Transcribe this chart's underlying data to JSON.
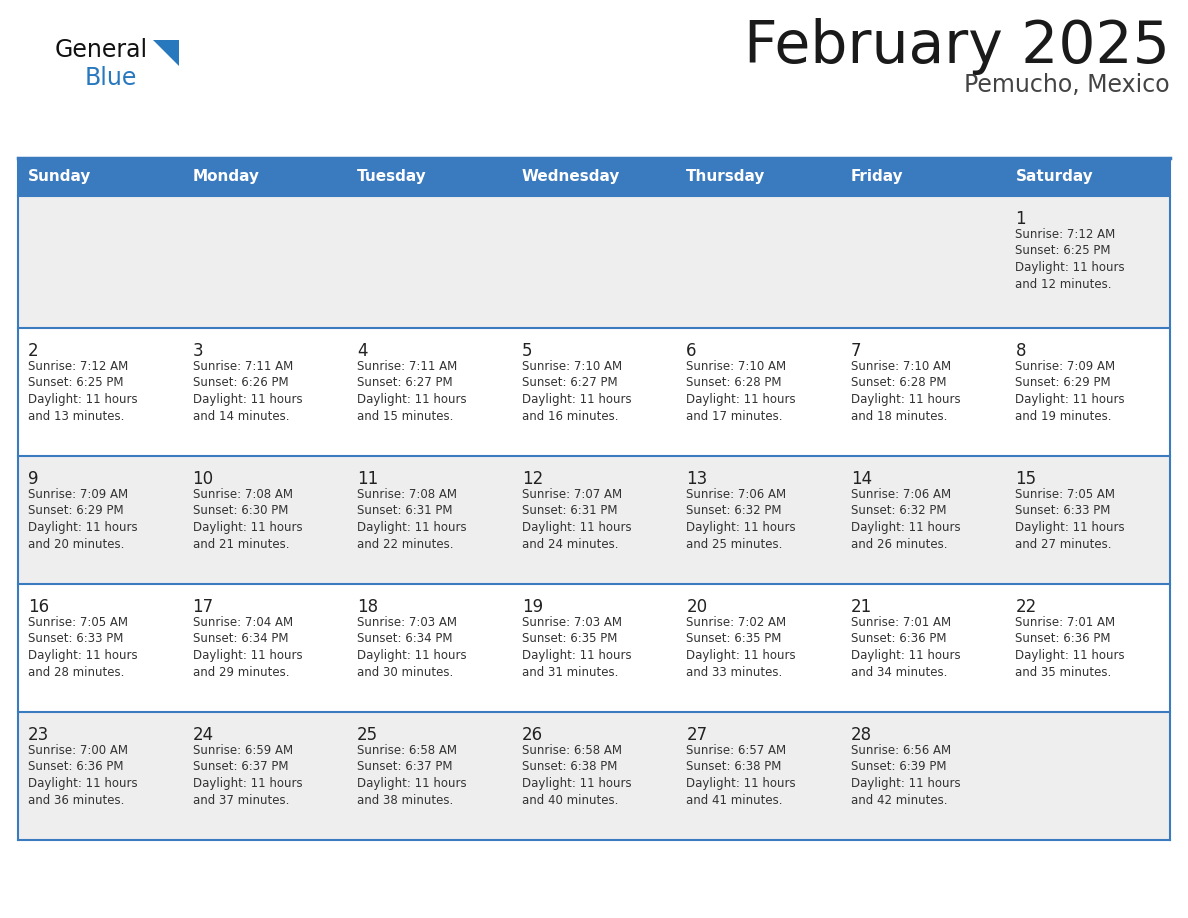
{
  "title": "February 2025",
  "subtitle": "Pemucho, Mexico",
  "days_of_week": [
    "Sunday",
    "Monday",
    "Tuesday",
    "Wednesday",
    "Thursday",
    "Friday",
    "Saturday"
  ],
  "header_bg": "#3a7abf",
  "header_text": "#ffffff",
  "row_bg_even": "#eeeeee",
  "row_bg_odd": "#ffffff",
  "cell_text_color": "#333333",
  "day_number_color": "#222222",
  "line_color": "#3a7abf",
  "title_color": "#1a1a1a",
  "subtitle_color": "#444444",
  "logo_general_color": "#111111",
  "logo_blue_color": "#2878be",
  "weeks": [
    [
      null,
      null,
      null,
      null,
      null,
      null,
      1
    ],
    [
      2,
      3,
      4,
      5,
      6,
      7,
      8
    ],
    [
      9,
      10,
      11,
      12,
      13,
      14,
      15
    ],
    [
      16,
      17,
      18,
      19,
      20,
      21,
      22
    ],
    [
      23,
      24,
      25,
      26,
      27,
      28,
      null
    ]
  ],
  "cell_data": {
    "1": {
      "sunrise": "7:12 AM",
      "sunset": "6:25 PM",
      "daylight": "11 hours and 12 minutes."
    },
    "2": {
      "sunrise": "7:12 AM",
      "sunset": "6:25 PM",
      "daylight": "11 hours and 13 minutes."
    },
    "3": {
      "sunrise": "7:11 AM",
      "sunset": "6:26 PM",
      "daylight": "11 hours and 14 minutes."
    },
    "4": {
      "sunrise": "7:11 AM",
      "sunset": "6:27 PM",
      "daylight": "11 hours and 15 minutes."
    },
    "5": {
      "sunrise": "7:10 AM",
      "sunset": "6:27 PM",
      "daylight": "11 hours and 16 minutes."
    },
    "6": {
      "sunrise": "7:10 AM",
      "sunset": "6:28 PM",
      "daylight": "11 hours and 17 minutes."
    },
    "7": {
      "sunrise": "7:10 AM",
      "sunset": "6:28 PM",
      "daylight": "11 hours and 18 minutes."
    },
    "8": {
      "sunrise": "7:09 AM",
      "sunset": "6:29 PM",
      "daylight": "11 hours and 19 minutes."
    },
    "9": {
      "sunrise": "7:09 AM",
      "sunset": "6:29 PM",
      "daylight": "11 hours and 20 minutes."
    },
    "10": {
      "sunrise": "7:08 AM",
      "sunset": "6:30 PM",
      "daylight": "11 hours and 21 minutes."
    },
    "11": {
      "sunrise": "7:08 AM",
      "sunset": "6:31 PM",
      "daylight": "11 hours and 22 minutes."
    },
    "12": {
      "sunrise": "7:07 AM",
      "sunset": "6:31 PM",
      "daylight": "11 hours and 24 minutes."
    },
    "13": {
      "sunrise": "7:06 AM",
      "sunset": "6:32 PM",
      "daylight": "11 hours and 25 minutes."
    },
    "14": {
      "sunrise": "7:06 AM",
      "sunset": "6:32 PM",
      "daylight": "11 hours and 26 minutes."
    },
    "15": {
      "sunrise": "7:05 AM",
      "sunset": "6:33 PM",
      "daylight": "11 hours and 27 minutes."
    },
    "16": {
      "sunrise": "7:05 AM",
      "sunset": "6:33 PM",
      "daylight": "11 hours and 28 minutes."
    },
    "17": {
      "sunrise": "7:04 AM",
      "sunset": "6:34 PM",
      "daylight": "11 hours and 29 minutes."
    },
    "18": {
      "sunrise": "7:03 AM",
      "sunset": "6:34 PM",
      "daylight": "11 hours and 30 minutes."
    },
    "19": {
      "sunrise": "7:03 AM",
      "sunset": "6:35 PM",
      "daylight": "11 hours and 31 minutes."
    },
    "20": {
      "sunrise": "7:02 AM",
      "sunset": "6:35 PM",
      "daylight": "11 hours and 33 minutes."
    },
    "21": {
      "sunrise": "7:01 AM",
      "sunset": "6:36 PM",
      "daylight": "11 hours and 34 minutes."
    },
    "22": {
      "sunrise": "7:01 AM",
      "sunset": "6:36 PM",
      "daylight": "11 hours and 35 minutes."
    },
    "23": {
      "sunrise": "7:00 AM",
      "sunset": "6:36 PM",
      "daylight": "11 hours and 36 minutes."
    },
    "24": {
      "sunrise": "6:59 AM",
      "sunset": "6:37 PM",
      "daylight": "11 hours and 37 minutes."
    },
    "25": {
      "sunrise": "6:58 AM",
      "sunset": "6:37 PM",
      "daylight": "11 hours and 38 minutes."
    },
    "26": {
      "sunrise": "6:58 AM",
      "sunset": "6:38 PM",
      "daylight": "11 hours and 40 minutes."
    },
    "27": {
      "sunrise": "6:57 AM",
      "sunset": "6:38 PM",
      "daylight": "11 hours and 41 minutes."
    },
    "28": {
      "sunrise": "6:56 AM",
      "sunset": "6:39 PM",
      "daylight": "11 hours and 42 minutes."
    }
  }
}
